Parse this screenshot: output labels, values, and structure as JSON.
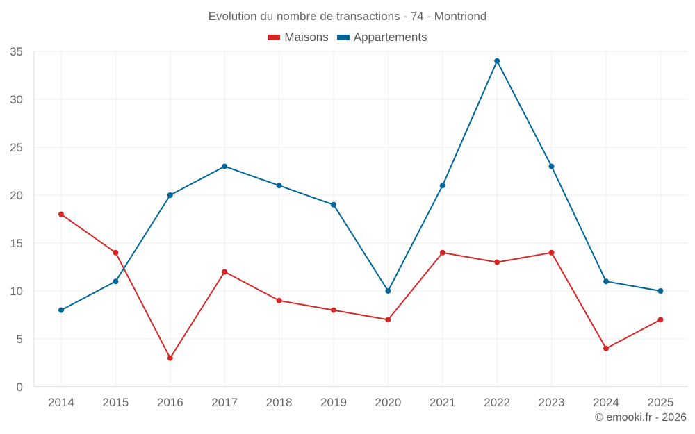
{
  "chart_data": {
    "type": "line",
    "title": "Evolution du nombre de transactions - 74 - Montriond",
    "categories": [
      "2014",
      "2015",
      "2016",
      "2017",
      "2018",
      "2019",
      "2020",
      "2021",
      "2022",
      "2023",
      "2024",
      "2025"
    ],
    "series": [
      {
        "name": "Maisons",
        "color": "#d62728",
        "values": [
          18,
          14,
          3,
          12,
          9,
          8,
          7,
          14,
          13,
          14,
          4,
          7
        ]
      },
      {
        "name": "Appartements",
        "color": "#006699",
        "values": [
          8,
          11,
          20,
          23,
          21,
          19,
          10,
          21,
          34,
          23,
          11,
          10
        ]
      }
    ],
    "xlabel": "",
    "ylabel": "",
    "ylim": [
      0,
      35
    ],
    "yticks": [
      "0",
      "5",
      "10",
      "15",
      "20",
      "25",
      "30",
      "35"
    ],
    "grid": true,
    "legend_position": "top-center"
  },
  "watermark": "© emooki.fr - 2026"
}
